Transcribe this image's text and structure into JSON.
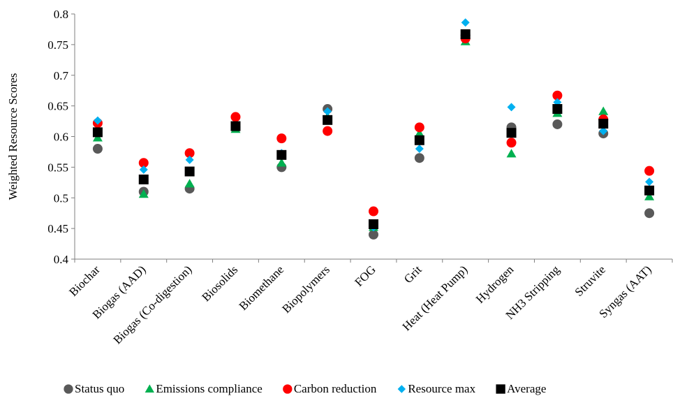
{
  "chart_data": {
    "type": "scatter",
    "title": "",
    "xlabel": "",
    "ylabel": "Weighted Resource Scores",
    "ylim": [
      0.4,
      0.8
    ],
    "ytick_step": 0.05,
    "yticks": [
      "0.4",
      "0.45",
      "0.5",
      "0.55",
      "0.6",
      "0.65",
      "0.7",
      "0.75",
      "0.8"
    ],
    "grid": false,
    "legend_position": "bottom",
    "categories": [
      "Biochar",
      "Biogas (AAD)",
      "Biogas (Co-digestion)",
      "Biosolids",
      "Biomethane",
      "Biopolymers",
      "FOG",
      "Grit",
      "Heat (Heat Pump)",
      "Hydrogen",
      "NH3 Stripping",
      "Struvite",
      "Syngas (AAT)"
    ],
    "series": [
      {
        "name": "Status quo",
        "marker": "circle",
        "color": "#595959",
        "values": [
          0.58,
          0.51,
          0.515,
          0.615,
          0.55,
          0.645,
          0.44,
          0.565,
          0.765,
          0.615,
          0.62,
          0.605,
          0.475
        ]
      },
      {
        "name": "Emissions compliance",
        "marker": "triangle",
        "color": "#00b050",
        "values": [
          0.598,
          0.506,
          0.523,
          0.612,
          0.557,
          0.632,
          0.452,
          0.605,
          0.755,
          0.572,
          0.638,
          0.641,
          0.502
        ]
      },
      {
        "name": "Carbon reduction",
        "marker": "circle",
        "color": "#ff0000",
        "values": [
          0.622,
          0.557,
          0.573,
          0.632,
          0.597,
          0.609,
          0.478,
          0.615,
          0.76,
          0.59,
          0.667,
          0.628,
          0.544
        ]
      },
      {
        "name": "Resource max",
        "marker": "diamond",
        "color": "#00b0f0",
        "values": [
          0.626,
          0.546,
          0.562,
          0.618,
          0.573,
          0.641,
          0.452,
          0.58,
          0.786,
          0.648,
          0.656,
          0.609,
          0.526
        ]
      },
      {
        "name": "Average",
        "marker": "square",
        "color": "#000000",
        "values": [
          0.607,
          0.53,
          0.543,
          0.617,
          0.57,
          0.627,
          0.457,
          0.594,
          0.767,
          0.606,
          0.645,
          0.621,
          0.512
        ]
      }
    ]
  }
}
